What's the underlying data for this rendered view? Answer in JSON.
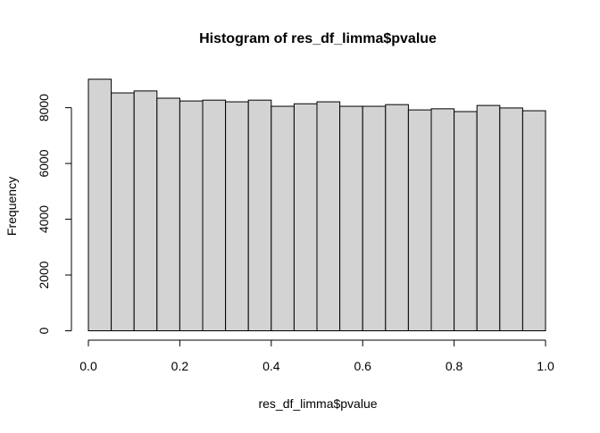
{
  "chart_data": {
    "type": "bar",
    "title": "Histogram of res_df_limma$pvalue",
    "xlabel": "res_df_limma$pvalue",
    "ylabel": "Frequency",
    "bin_edges": [
      0.0,
      0.05,
      0.1,
      0.15,
      0.2,
      0.25,
      0.3,
      0.35,
      0.4,
      0.45,
      0.5,
      0.55,
      0.6,
      0.65,
      0.7,
      0.75,
      0.8,
      0.85,
      0.9,
      0.95,
      1.0
    ],
    "values": [
      9020,
      8530,
      8600,
      8340,
      8240,
      8270,
      8210,
      8270,
      8050,
      8140,
      8210,
      8050,
      8050,
      8110,
      7920,
      7960,
      7860,
      8080,
      7990,
      7890
    ],
    "xlim": [
      0,
      1
    ],
    "ylim": [
      0,
      9300
    ],
    "x_ticks": [
      0.0,
      0.2,
      0.4,
      0.6,
      0.8,
      1.0
    ],
    "x_tick_labels": [
      "0.0",
      "0.2",
      "0.4",
      "0.6",
      "0.8",
      "1.0"
    ],
    "y_ticks": [
      0,
      2000,
      4000,
      6000,
      8000
    ],
    "y_tick_labels": [
      "0",
      "2000",
      "4000",
      "6000",
      "8000"
    ],
    "bar_fill": "#d3d3d3",
    "bar_stroke": "#000000",
    "grid": false,
    "legend": "none"
  }
}
